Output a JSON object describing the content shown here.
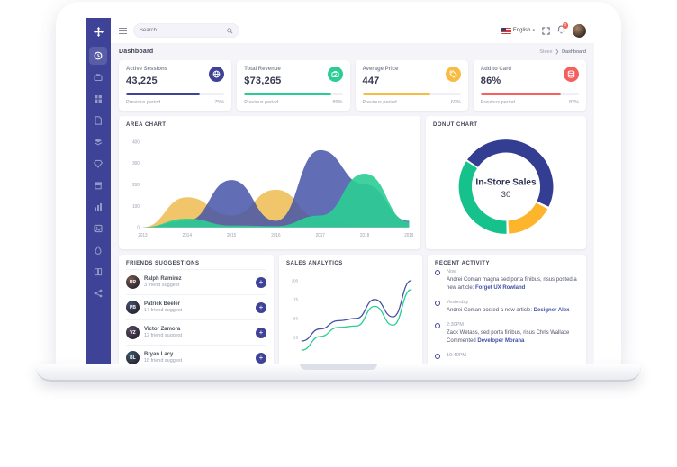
{
  "topbar": {
    "search_placeholder": "Search.",
    "language": "English",
    "notification_count": "3"
  },
  "page": {
    "title": "Dashboard",
    "breadcrumb_root": "Steex",
    "breadcrumb_sep": "❯",
    "breadcrumb_current": "Dashboard"
  },
  "stats": {
    "footer_label": "Previous period",
    "cards": [
      {
        "label": "Active Sessions",
        "value": "43,225",
        "percent": "75%",
        "progress": 75,
        "color": "#3e4397",
        "icon": "globe-icon"
      },
      {
        "label": "Total Revenue",
        "value": "$73,265",
        "percent": "89%",
        "progress": 89,
        "color": "#2bcd94",
        "icon": "briefcase-icon"
      },
      {
        "label": "Average Price",
        "value": "447",
        "percent": "69%",
        "progress": 69,
        "color": "#f8bc45",
        "icon": "tag-icon"
      },
      {
        "label": "Add to Card",
        "value": "86%",
        "percent": "82%",
        "progress": 82,
        "color": "#f5605f",
        "icon": "stack-icon"
      }
    ]
  },
  "chart_data": [
    {
      "type": "area",
      "title": "AREA CHART",
      "categories": [
        "2013",
        "2014",
        "2015",
        "2016",
        "2017",
        "2018",
        "2019"
      ],
      "series": [
        {
          "name": "yellow",
          "color": "#f0c05a",
          "opacity": 0.9,
          "values": [
            0,
            140,
            55,
            175,
            40,
            10,
            0
          ]
        },
        {
          "name": "blue",
          "color": "#4553a8",
          "opacity": 0.85,
          "values": [
            0,
            30,
            220,
            30,
            360,
            200,
            30
          ]
        },
        {
          "name": "green",
          "color": "#2bcd94",
          "opacity": 0.9,
          "values": [
            0,
            40,
            8,
            5,
            55,
            250,
            25
          ]
        }
      ],
      "ylim": [
        0,
        400
      ],
      "yticks": [
        0,
        100,
        200,
        300,
        400
      ],
      "grid": false,
      "legend": "none"
    },
    {
      "type": "donut",
      "title": "DONUT CHART",
      "center_label": "In-Store Sales",
      "center_value": "30",
      "start_angle_deg": -55,
      "slices": [
        {
          "name": "blue",
          "value": 48,
          "color": "#333e92"
        },
        {
          "name": "yellow",
          "value": 17,
          "color": "#fdb62c"
        },
        {
          "name": "green",
          "value": 35,
          "color": "#16c28b"
        }
      ]
    },
    {
      "type": "line",
      "title": "SALES ANALYTICS",
      "yticks": [
        25,
        50,
        75,
        100
      ],
      "ylim": [
        0,
        105
      ],
      "series": [
        {
          "name": "blue",
          "color": "#4553a8",
          "values": [
            20,
            36,
            47,
            50,
            75,
            52,
            100
          ]
        },
        {
          "name": "green",
          "color": "#2bcd94",
          "values": [
            8,
            26,
            38,
            40,
            66,
            41,
            88
          ]
        }
      ]
    }
  ],
  "friends": {
    "title": "FRIENDS SUGGESTIONS",
    "add_label": "+",
    "items": [
      {
        "name": "Ralph Ramirez",
        "sub": "3 friend suggest",
        "initials": "RR",
        "avatar_color": "#7a5c4e"
      },
      {
        "name": "Patrick Beeler",
        "sub": "17 friend suggest",
        "initials": "PB",
        "avatar_color": "#44506b"
      },
      {
        "name": "Victor Zamora",
        "sub": "12 friend suggest",
        "initials": "VZ",
        "avatar_color": "#5b4a63"
      },
      {
        "name": "Bryan Lacy",
        "sub": "18 friend suggest",
        "initials": "BL",
        "avatar_color": "#3d5a6b"
      }
    ]
  },
  "activity": {
    "title": "RECENT ACTIVITY",
    "items": [
      {
        "time": "Now",
        "text": "Andrei Coman magna sed porta finibus, risus posted a new article: ",
        "link": "Forget UX Rowland"
      },
      {
        "time": "Yesterday",
        "text": "Andrei Coman posted a new article: ",
        "link": "Designer Alex"
      },
      {
        "time": "2:30PM",
        "text": "Zack Wetass, sed porta finibus, risus Chris Wallace Commented ",
        "link": "Developer Morana"
      },
      {
        "time": "10:40PM",
        "text": "",
        "link": ""
      }
    ]
  }
}
